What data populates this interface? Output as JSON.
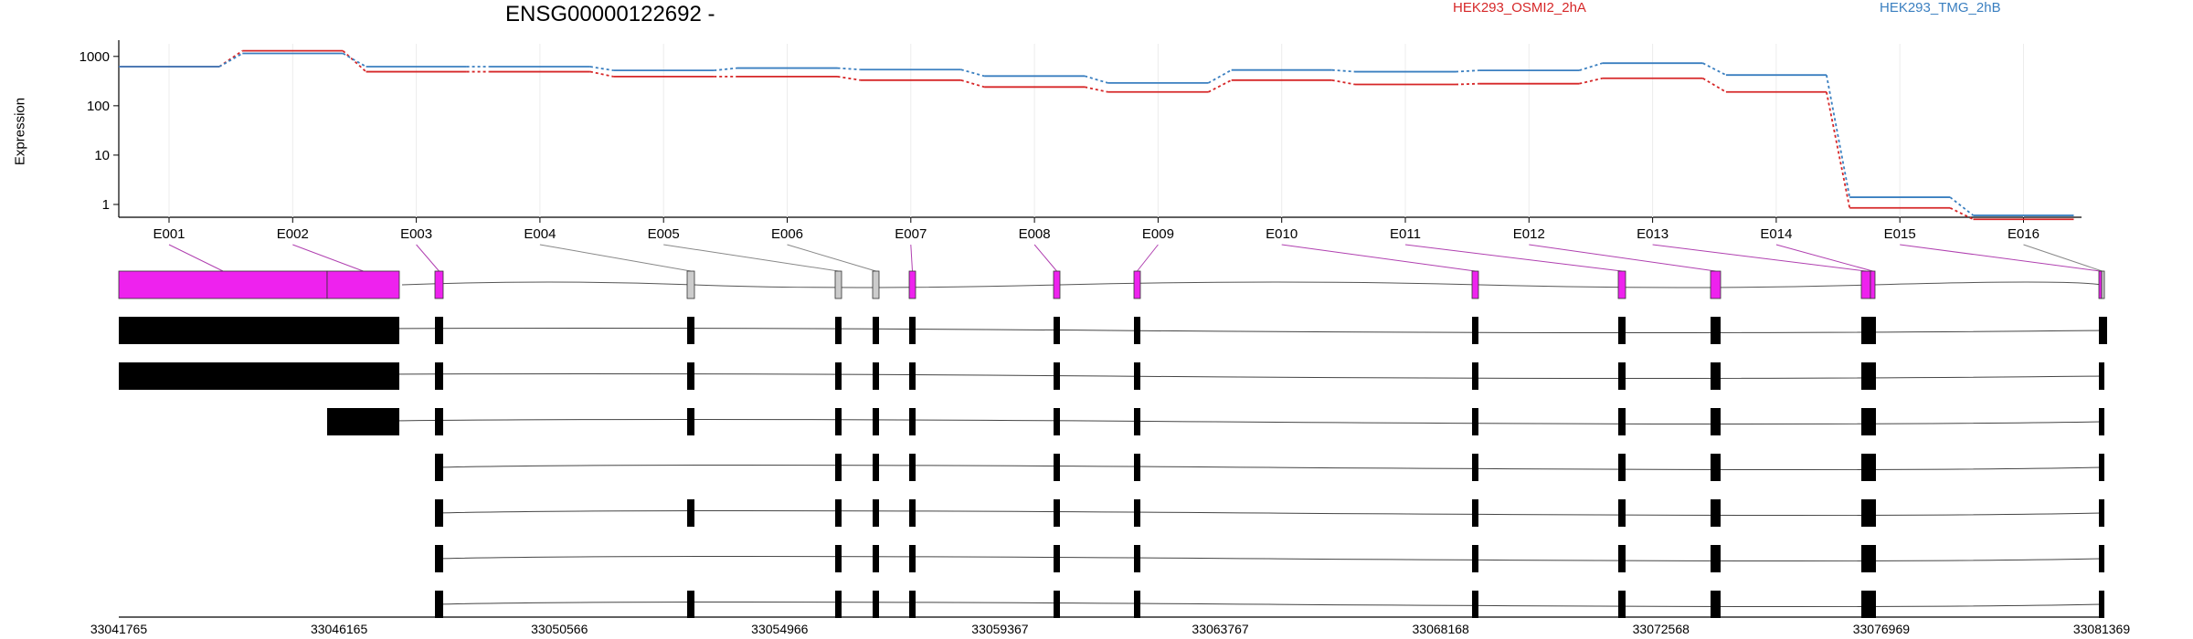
{
  "header": {
    "title": "ENSG00000122692 -",
    "legend": [
      "HEK293_OSMI2_2hA",
      "HEK293_TMG_2hB"
    ]
  },
  "colors": {
    "series_a": "#d62728",
    "series_b": "#3a7fc0",
    "exon_highlight": "#ee22ee",
    "exon_plain": "#cccccc",
    "transcript_fill": "#000000"
  },
  "chart_data": {
    "type": "line",
    "ylabel": "Expression",
    "yscale": "log",
    "yticks": [
      1,
      10,
      100,
      1000
    ],
    "ylim": [
      0.55,
      1800
    ],
    "exons": [
      "E001",
      "E002",
      "E003",
      "E004",
      "E005",
      "E006",
      "E007",
      "E008",
      "E009",
      "E010",
      "E011",
      "E012",
      "E013",
      "E014",
      "E015",
      "E016"
    ],
    "series": [
      {
        "name": "HEK293_OSMI2_2hA",
        "values": [
          620,
          1300,
          490,
          490,
          390,
          390,
          330,
          240,
          190,
          330,
          270,
          280,
          360,
          190,
          0.85,
          0.5
        ]
      },
      {
        "name": "HEK293_TMG_2hB",
        "values": [
          620,
          1150,
          620,
          620,
          520,
          580,
          540,
          400,
          290,
          530,
          490,
          520,
          730,
          420,
          1.4,
          0.6
        ]
      }
    ],
    "genomic_ticks": [
      "33041765",
      "33046165",
      "33050566",
      "33054966",
      "33059367",
      "33063767",
      "33068168",
      "33072568",
      "33076969",
      "33081369"
    ],
    "gene_model": {
      "exon_highlight": [
        true,
        true,
        true,
        false,
        false,
        false,
        true,
        true,
        true,
        true,
        true,
        true,
        true,
        true,
        true,
        false
      ]
    },
    "transcripts": [
      [
        1,
        1,
        1,
        1,
        1,
        1,
        1,
        1,
        1,
        1,
        1,
        1,
        1,
        1,
        1,
        1
      ],
      [
        1,
        1,
        1,
        1,
        1,
        1,
        1,
        1,
        1,
        1,
        1,
        1,
        1,
        1,
        1,
        0
      ],
      [
        0,
        1,
        1,
        1,
        1,
        1,
        1,
        1,
        1,
        1,
        1,
        1,
        1,
        1,
        1,
        0
      ],
      [
        0,
        0,
        1,
        0,
        1,
        1,
        1,
        1,
        1,
        1,
        1,
        1,
        1,
        1,
        1,
        0
      ],
      [
        0,
        0,
        1,
        1,
        1,
        1,
        1,
        1,
        1,
        1,
        1,
        1,
        1,
        1,
        1,
        0
      ],
      [
        0,
        0,
        1,
        0,
        1,
        1,
        1,
        1,
        1,
        1,
        1,
        1,
        1,
        1,
        1,
        0
      ],
      [
        0,
        0,
        1,
        1,
        1,
        1,
        1,
        1,
        1,
        1,
        1,
        1,
        1,
        1,
        1,
        0
      ]
    ]
  }
}
